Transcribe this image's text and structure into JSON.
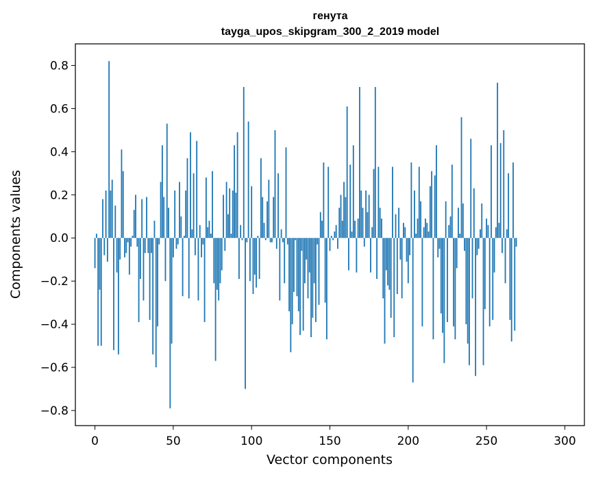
{
  "chart_data": {
    "type": "bar",
    "title": "генута",
    "subtitle": "tayga_upos_skipgram_300_2_2019 model",
    "xlabel": "Vector components",
    "ylabel": "Components values",
    "xlim": [
      -12.5,
      312.5
    ],
    "ylim": [
      -0.87,
      0.9
    ],
    "xticks": [
      0,
      50,
      100,
      150,
      200,
      250,
      300
    ],
    "xtick_labels": [
      "0",
      "50",
      "100",
      "150",
      "200",
      "250",
      "300"
    ],
    "yticks": [
      -0.8,
      -0.6,
      -0.4,
      -0.2,
      0.0,
      0.2,
      0.4,
      0.6,
      0.8
    ],
    "ytick_labels": [
      "−0.8",
      "−0.6",
      "−0.4",
      "−0.2",
      "0.0",
      "0.2",
      "0.4",
      "0.6",
      "0.8"
    ],
    "bar_color": "#1f77b4",
    "grid": false,
    "legend": "none",
    "values": [
      -0.14,
      0.02,
      -0.5,
      -0.24,
      -0.5,
      0.18,
      -0.08,
      0.22,
      -0.11,
      0.82,
      0.22,
      0.27,
      -0.52,
      0.15,
      -0.16,
      -0.54,
      -0.1,
      0.41,
      0.31,
      -0.09,
      -0.07,
      -0.02,
      -0.17,
      -0.04,
      0.01,
      0.13,
      0.2,
      -0.04,
      -0.39,
      -0.19,
      0.18,
      -0.29,
      -0.07,
      0.19,
      -0.07,
      -0.38,
      -0.07,
      -0.54,
      0.08,
      -0.6,
      -0.41,
      -0.03,
      0.26,
      0.43,
      0.19,
      -0.2,
      0.53,
      0.14,
      -0.79,
      -0.49,
      -0.09,
      0.22,
      -0.05,
      -0.03,
      0.26,
      0.1,
      -0.27,
      0.01,
      0.22,
      0.37,
      -0.28,
      0.49,
      0.04,
      0.3,
      -0.08,
      0.45,
      -0.29,
      0.06,
      -0.09,
      -0.03,
      -0.39,
      0.28,
      0.05,
      0.08,
      0.02,
      0.31,
      -0.21,
      -0.57,
      -0.24,
      -0.29,
      -0.21,
      -0.15,
      0.2,
      -0.06,
      0.26,
      0.11,
      0.23,
      0.02,
      0.22,
      0.43,
      0.21,
      0.49,
      -0.19,
      0.06,
      -0.01,
      0.7,
      -0.7,
      -0.02,
      0.54,
      -0.2,
      0.24,
      -0.26,
      -0.17,
      -0.23,
      0.01,
      -0.19,
      0.37,
      0.19,
      0.07,
      -0.01,
      0.17,
      0.27,
      -0.02,
      -0.02,
      0.19,
      0.5,
      -0.05,
      0.3,
      -0.29,
      0.04,
      -0.02,
      -0.21,
      0.42,
      -0.03,
      -0.34,
      -0.53,
      -0.4,
      -0.25,
      -0.01,
      -0.27,
      -0.34,
      -0.45,
      -0.06,
      -0.43,
      -0.21,
      -0.1,
      -0.28,
      -0.16,
      -0.46,
      -0.37,
      -0.21,
      -0.39,
      -0.03,
      -0.31,
      0.12,
      0.08,
      0.35,
      -0.3,
      -0.47,
      0.33,
      -0.06,
      0.01,
      -0.01,
      0.03,
      0.06,
      -0.05,
      0.14,
      0.2,
      0.08,
      0.26,
      0.19,
      0.61,
      -0.15,
      0.34,
      0.03,
      0.43,
      0.08,
      -0.16,
      0.09,
      0.7,
      0.22,
      0.14,
      -0.04,
      0.22,
      0.12,
      0.2,
      -0.16,
      0.05,
      0.32,
      0.7,
      -0.19,
      0.33,
      0.14,
      0.09,
      -0.28,
      -0.49,
      -0.15,
      -0.22,
      -0.24,
      -0.37,
      0.33,
      -0.46,
      0.11,
      -0.26,
      0.14,
      -0.1,
      -0.28,
      0.07,
      0.05,
      -0.11,
      -0.21,
      -0.08,
      0.35,
      -0.67,
      0.22,
      0.02,
      0.09,
      0.33,
      0.17,
      -0.41,
      0.05,
      0.09,
      0.07,
      0.03,
      0.24,
      0.31,
      -0.47,
      0.29,
      0.43,
      -0.09,
      -0.05,
      -0.35,
      -0.44,
      -0.58,
      0.17,
      -0.39,
      0.06,
      0.1,
      0.34,
      -0.41,
      -0.47,
      -0.14,
      0.14,
      0.02,
      0.56,
      0.16,
      -0.06,
      -0.4,
      -0.49,
      -0.59,
      0.46,
      -0.28,
      0.23,
      -0.64,
      -0.08,
      -0.05,
      0.04,
      0.16,
      -0.59,
      -0.33,
      0.09,
      0.06,
      -0.41,
      0.43,
      -0.38,
      -0.16,
      0.05,
      0.72,
      0.07,
      0.44,
      -0.07,
      0.5,
      -0.21,
      0.04,
      0.3,
      -0.38,
      -0.48,
      0.35,
      -0.43,
      -0.04
    ]
  }
}
